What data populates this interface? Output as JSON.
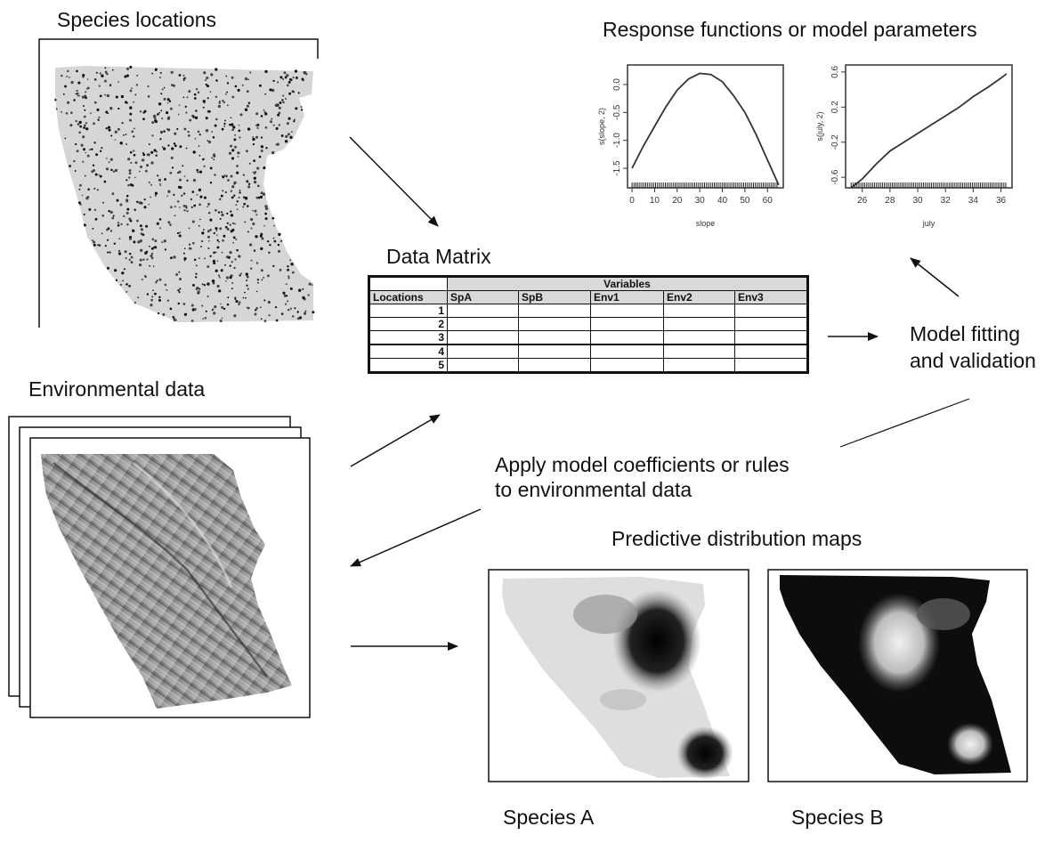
{
  "labels": {
    "species_locations": "Species locations",
    "environmental_data": "Environmental data",
    "response_functions": "Response functions or model parameters",
    "data_matrix": "Data Matrix",
    "model_fitting_line1": "Model fitting",
    "model_fitting_line2": "and validation",
    "apply_line1": "Apply model coefficients or rules",
    "apply_line2": "to environmental data",
    "predictive_maps": "Predictive distribution maps",
    "species_a": "Species A",
    "species_b": "Species B"
  },
  "data_matrix": {
    "variables_header": "Variables",
    "locations_header": "Locations",
    "columns": [
      "SpA",
      "SpB",
      "Env1",
      "Env2",
      "Env3"
    ],
    "rows": [
      "1",
      "2",
      "3",
      "4",
      "5"
    ]
  },
  "chart_data": [
    {
      "type": "line",
      "xlabel": "slope",
      "ylabel": "s(slope, 2)",
      "xticks": [
        "0",
        "10",
        "20",
        "30",
        "40",
        "50",
        "60"
      ],
      "yticks": [
        "0.0",
        "-0.5",
        "-1.0",
        "-1.5"
      ],
      "xlim": [
        -2,
        67
      ],
      "ylim": [
        -1.85,
        0.35
      ],
      "x": [
        0,
        5,
        10,
        15,
        20,
        25,
        30,
        35,
        40,
        45,
        50,
        55,
        60,
        65
      ],
      "y": [
        -1.5,
        -1.1,
        -0.75,
        -0.4,
        -0.1,
        0.1,
        0.2,
        0.18,
        0.05,
        -0.2,
        -0.5,
        -0.9,
        -1.35,
        -1.8
      ]
    },
    {
      "type": "line",
      "xlabel": "july",
      "ylabel": "s(july, 2)",
      "xticks": [
        "26",
        "28",
        "30",
        "32",
        "34",
        "36"
      ],
      "yticks": [
        "0.6",
        "0.2",
        "-0.2",
        "-0.6"
      ],
      "xlim": [
        24.8,
        36.8
      ],
      "ylim": [
        -0.72,
        0.68
      ],
      "x": [
        25.2,
        26,
        27,
        28,
        29,
        30,
        31,
        32,
        33,
        34,
        35,
        36,
        36.4
      ],
      "y": [
        -0.72,
        -0.62,
        -0.45,
        -0.3,
        -0.2,
        -0.1,
        0.0,
        0.1,
        0.2,
        0.32,
        0.42,
        0.53,
        0.58
      ]
    }
  ]
}
